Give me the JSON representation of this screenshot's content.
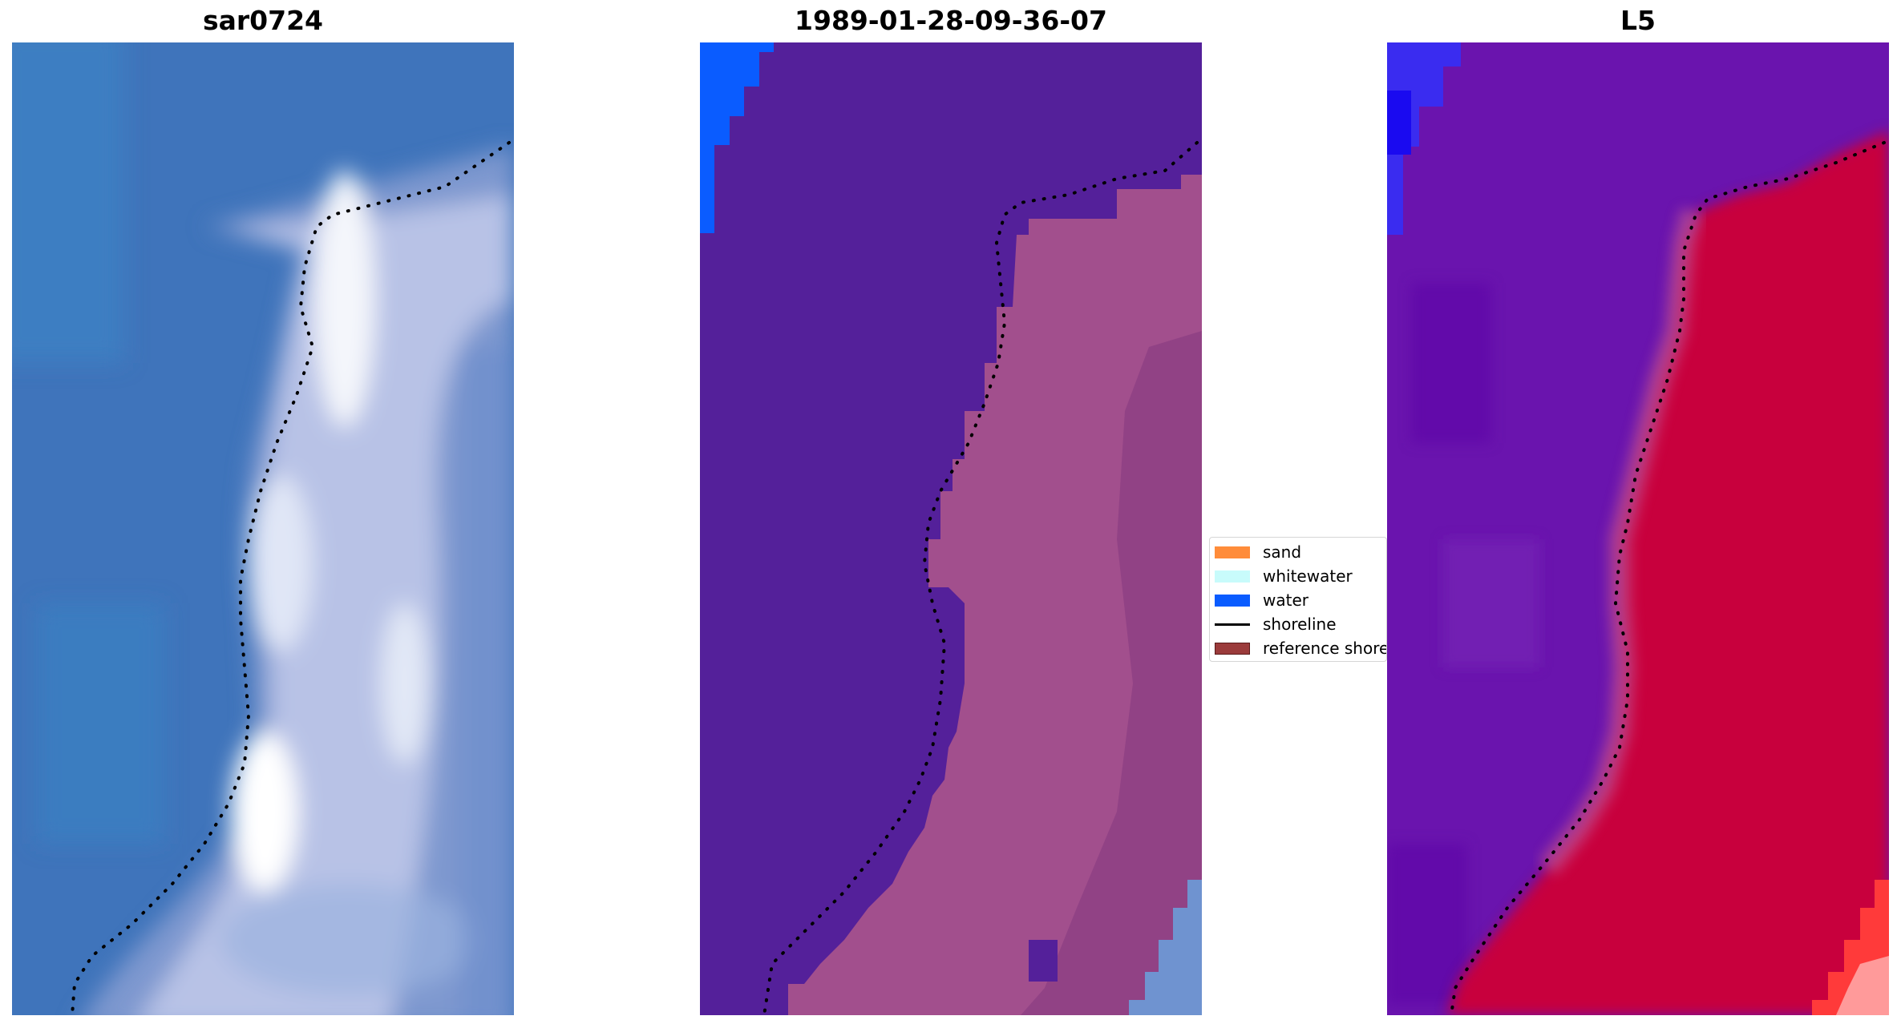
{
  "panels": [
    {
      "title": "sar0724",
      "image": "rgb-satellite-image"
    },
    {
      "title": "1989-01-28-09-36-07",
      "image": "classified-image"
    },
    {
      "title": "L5",
      "image": "index-image"
    }
  ],
  "legend": {
    "items": [
      {
        "label": "sand",
        "color": "#ff8c3a",
        "kind": "patch"
      },
      {
        "label": "whitewater",
        "color": "#c8fbfb",
        "kind": "patch"
      },
      {
        "label": "water",
        "color": "#0a5cff",
        "kind": "patch"
      },
      {
        "label": "shoreline",
        "color": "#000000",
        "kind": "line"
      },
      {
        "label": "reference shoreline",
        "color": "#9b3b3b",
        "kind": "patch"
      }
    ]
  },
  "colors": {
    "sar_water": "#3f74bb",
    "sar_surf": "#b8c2e6",
    "class_water_dark": "#54209a",
    "class_land": "#a24f8d",
    "class_water_blue": "#0a5cff",
    "index_low": "#6a14ae",
    "index_high": "#c8063c",
    "shoreline": "#000000"
  }
}
